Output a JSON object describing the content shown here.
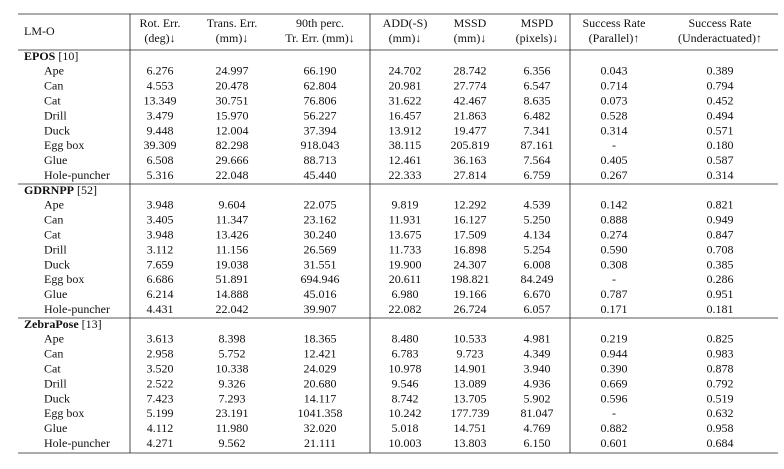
{
  "header": {
    "columns": [
      [
        "LM-O"
      ],
      [
        "Rot. Err.",
        "(deg)↓"
      ],
      [
        "Trans. Err.",
        "(mm)↓"
      ],
      [
        "90th perc.",
        "Tr. Err. (mm)↓"
      ],
      [
        "ADD(-S)",
        "(mm)↓"
      ],
      [
        "MSSD",
        "(mm)↓"
      ],
      [
        "MSPD",
        "(pixels)↓"
      ],
      [
        "Success Rate",
        "(Parallel)↑"
      ],
      [
        "Success Rate",
        "(Underactuated)↑"
      ]
    ]
  },
  "groups": [
    {
      "name": "EPOS",
      "ref": "[10]",
      "rows": [
        [
          "Ape",
          "6.276",
          "24.997",
          "66.190",
          "24.702",
          "28.742",
          "6.356",
          "0.043",
          "0.389"
        ],
        [
          "Can",
          "4.553",
          "20.478",
          "62.804",
          "20.981",
          "27.774",
          "6.547",
          "0.714",
          "0.794"
        ],
        [
          "Cat",
          "13.349",
          "30.751",
          "76.806",
          "31.622",
          "42.467",
          "8.635",
          "0.073",
          "0.452"
        ],
        [
          "Drill",
          "3.479",
          "15.970",
          "56.227",
          "16.457",
          "21.863",
          "6.482",
          "0.528",
          "0.494"
        ],
        [
          "Duck",
          "9.448",
          "12.004",
          "37.394",
          "13.912",
          "19.477",
          "7.341",
          "0.314",
          "0.571"
        ],
        [
          "Egg box",
          "39.309",
          "82.298",
          "918.043",
          "38.115",
          "205.819",
          "87.161",
          "-",
          "0.180"
        ],
        [
          "Glue",
          "6.508",
          "29.666",
          "88.713",
          "12.461",
          "36.163",
          "7.564",
          "0.405",
          "0.587"
        ],
        [
          "Hole-puncher",
          "5.316",
          "22.048",
          "45.440",
          "22.333",
          "27.814",
          "6.759",
          "0.267",
          "0.314"
        ]
      ]
    },
    {
      "name": "GDRNPP",
      "ref": "[52]",
      "rows": [
        [
          "Ape",
          "3.948",
          "9.604",
          "22.075",
          "9.819",
          "12.292",
          "4.539",
          "0.142",
          "0.821"
        ],
        [
          "Can",
          "3.405",
          "11.347",
          "23.162",
          "11.931",
          "16.127",
          "5.250",
          "0.888",
          "0.949"
        ],
        [
          "Cat",
          "3.948",
          "13.426",
          "30.240",
          "13.675",
          "17.509",
          "4.134",
          "0.274",
          "0.847"
        ],
        [
          "Drill",
          "3.112",
          "11.156",
          "26.569",
          "11.733",
          "16.898",
          "5.254",
          "0.590",
          "0.708"
        ],
        [
          "Duck",
          "7.659",
          "19.038",
          "31.551",
          "19.900",
          "24.307",
          "6.008",
          "0.308",
          "0.385"
        ],
        [
          "Egg box",
          "6.686",
          "51.891",
          "694.946",
          "20.611",
          "198.821",
          "84.249",
          "-",
          "0.286"
        ],
        [
          "Glue",
          "6.214",
          "14.888",
          "45.016",
          "6.980",
          "19.166",
          "6.670",
          "0.787",
          "0.951"
        ],
        [
          "Hole-puncher",
          "4.431",
          "22.042",
          "39.907",
          "22.082",
          "26.724",
          "6.057",
          "0.171",
          "0.181"
        ]
      ]
    },
    {
      "name": "ZebraPose",
      "ref": "[13]",
      "rows": [
        [
          "Ape",
          "3.613",
          "8.398",
          "18.365",
          "8.480",
          "10.533",
          "4.981",
          "0.219",
          "0.825"
        ],
        [
          "Can",
          "2.958",
          "5.752",
          "12.421",
          "6.783",
          "9.723",
          "4.349",
          "0.944",
          "0.983"
        ],
        [
          "Cat",
          "3.520",
          "10.338",
          "24.029",
          "10.978",
          "14.901",
          "3.940",
          "0.390",
          "0.878"
        ],
        [
          "Drill",
          "2.522",
          "9.326",
          "20.680",
          "9.546",
          "13.089",
          "4.936",
          "0.669",
          "0.792"
        ],
        [
          "Duck",
          "7.423",
          "7.293",
          "14.117",
          "8.742",
          "13.705",
          "5.902",
          "0.596",
          "0.519"
        ],
        [
          "Egg box",
          "5.199",
          "23.191",
          "1041.358",
          "10.242",
          "177.739",
          "81.047",
          "-",
          "0.632"
        ],
        [
          "Glue",
          "4.112",
          "11.980",
          "32.020",
          "5.018",
          "14.751",
          "4.769",
          "0.882",
          "0.958"
        ],
        [
          "Hole-puncher",
          "4.271",
          "9.562",
          "21.111",
          "10.003",
          "13.803",
          "6.150",
          "0.601",
          "0.684"
        ]
      ]
    }
  ]
}
